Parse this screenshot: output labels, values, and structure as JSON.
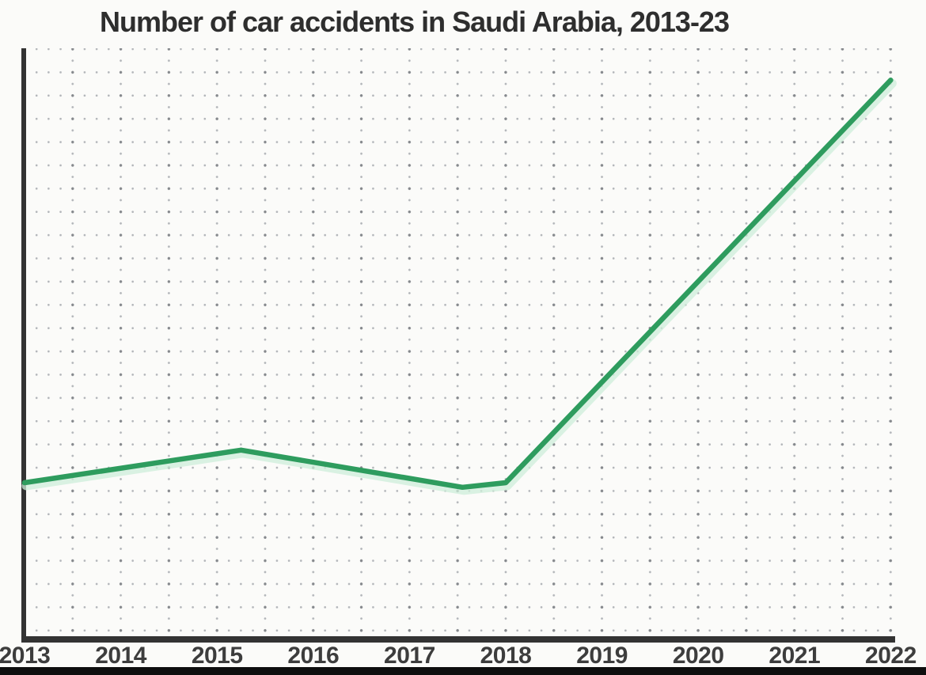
{
  "page": {
    "background_color": "#fbfbf9",
    "bottom_bar_color": "#0e0e0e"
  },
  "chart": {
    "title_color": "#2e2e2e",
    "axis_color": "#333333",
    "tick_label_color": "#3d3d3d",
    "grid_dot_color": "#b2b5b9",
    "grid_intersection_dot_color": "#85888c"
  },
  "chart_data": {
    "type": "line",
    "title": "Number of car accidents in Saudi Arabia, 2013-23",
    "xlabel": "",
    "ylabel": "",
    "x_tick_labels": [
      "2013",
      "2014",
      "2015",
      "2016",
      "2017",
      "2018",
      "2019",
      "2020",
      "2021",
      "2022"
    ],
    "x_range_years": [
      2013,
      2022
    ],
    "y_axis": {
      "labeled": false,
      "tick_labels": [],
      "note": "no numeric scale shown; values expressed in grid-row units above the x-axis",
      "visible_grid_rows": 25
    },
    "grid": {
      "visible": true,
      "style": "dotted"
    },
    "legend": {
      "visible": false
    },
    "series": [
      {
        "name": "car-accidents",
        "color": "#2e9c5e",
        "glow_color": "#cdeeda",
        "x": [
          2013,
          2014,
          2015,
          2016,
          2017,
          2018,
          2019,
          2020,
          2021,
          2022
        ],
        "values_grid_rows": [
          6.6,
          7.2,
          7.8,
          7.5,
          6.8,
          6.6,
          10.9,
          15.2,
          19.5,
          23.9
        ],
        "vertices": [
          {
            "x_year": 2013.0,
            "value_rows": 6.6
          },
          {
            "x_year": 2015.25,
            "value_rows": 8.0
          },
          {
            "x_year": 2017.55,
            "value_rows": 6.4
          },
          {
            "x_year": 2018.0,
            "value_rows": 6.6
          },
          {
            "x_year": 2022.0,
            "value_rows": 23.9
          }
        ]
      }
    ]
  }
}
